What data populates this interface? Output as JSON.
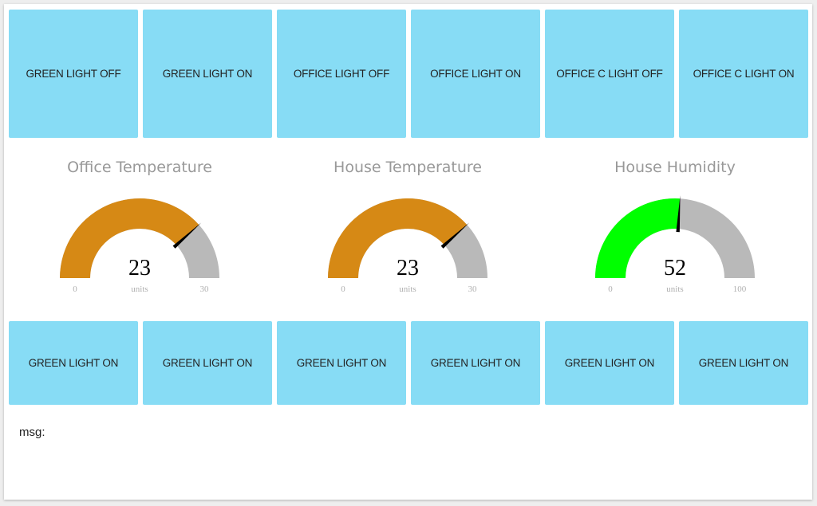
{
  "buttons_top": [
    {
      "label": "GREEN LIGHT OFF"
    },
    {
      "label": "GREEN LIGHT ON"
    },
    {
      "label": "OFFICE LIGHT OFF"
    },
    {
      "label": "OFFICE LIGHT ON"
    },
    {
      "label": "OFFICE C LIGHT OFF"
    },
    {
      "label": "OFFICE C LIGHT ON"
    }
  ],
  "gauges": [
    {
      "title": "Office Temperature",
      "value": "23",
      "value_num": 23,
      "units": "units",
      "min": "0",
      "max": "30",
      "min_num": 0,
      "max_num": 30,
      "color": "#d68915",
      "track_color": "#b9b9b9"
    },
    {
      "title": "House Temperature",
      "value": "23",
      "value_num": 23,
      "units": "units",
      "min": "0",
      "max": "30",
      "min_num": 0,
      "max_num": 30,
      "color": "#d68915",
      "track_color": "#b9b9b9"
    },
    {
      "title": "House Humidity",
      "value": "52",
      "value_num": 52,
      "units": "units",
      "min": "0",
      "max": "100",
      "min_num": 0,
      "max_num": 100,
      "color": "#00ff00",
      "track_color": "#b9b9b9"
    }
  ],
  "buttons_bottom": [
    {
      "label": "GREEN LIGHT ON"
    },
    {
      "label": "GREEN LIGHT ON"
    },
    {
      "label": "GREEN LIGHT ON"
    },
    {
      "label": "GREEN LIGHT ON"
    },
    {
      "label": "GREEN LIGHT ON"
    },
    {
      "label": "GREEN LIGHT ON"
    }
  ],
  "msg": {
    "label": "msg:"
  },
  "colors": {
    "tile": "#87dcf5",
    "needle": "#000000"
  }
}
